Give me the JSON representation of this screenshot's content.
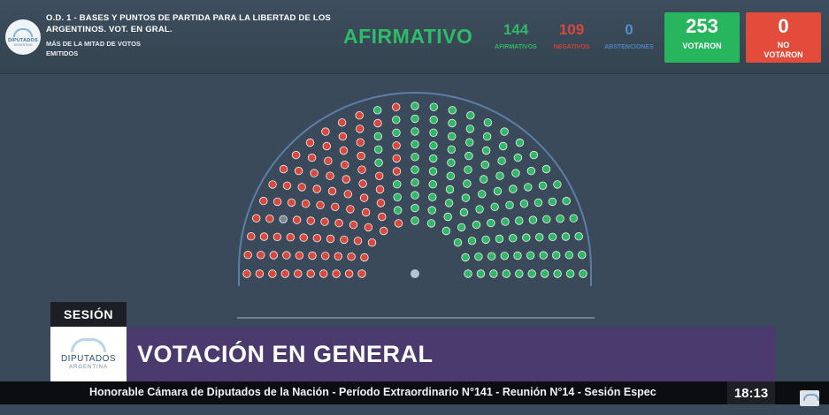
{
  "header": {
    "logo_text": "DIPUTADOS",
    "logo_subtext": "ARGENTINA",
    "motion_title": "O.D. 1 - BASES Y PUNTOS DE PARTIDA PARA LA LIBERTAD DE LOS ARGENTINOS. VOT. EN GRAL.",
    "majority_note": "MÁS DE LA MITAD DE VOTOS EMITIDOS",
    "result": "AFIRMATIVO",
    "affirmative": {
      "count": "144",
      "label": "AFIRMATIVOS"
    },
    "negative": {
      "count": "109",
      "label": "NEGATIVOS"
    },
    "abstentions": {
      "count": "0",
      "label": "ABSTENCIONES"
    },
    "voted": {
      "count": "253",
      "label": "VOTARON"
    },
    "not_voted": {
      "count": "0",
      "label": "NO VOTARON"
    }
  },
  "chamber": {
    "colors": {
      "affirmative": "#2fb866",
      "negative": "#d9483d",
      "absent": "#7b8794",
      "center": "#b8c4d0",
      "arch": "#5c7ea8"
    },
    "rows": 10,
    "seats_per_row": [
      11,
      13,
      15,
      17,
      19,
      21,
      23,
      25,
      27,
      29
    ],
    "affirmative_share": 0.57
  },
  "lower_third": {
    "section_tag": "SESIÓN",
    "logo_text": "DIPUTADOS",
    "logo_subtext": "ARGENTINA",
    "title": "VOTACIÓN EN GENERAL",
    "ticker": "Honorable Cámara de Diputados de la Nación - Período Extraordinario N°141 - Reunión N°14 - Sesión Espec",
    "clock": "18:13"
  }
}
